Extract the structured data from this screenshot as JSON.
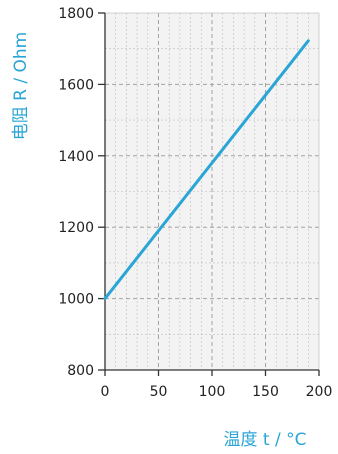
{
  "chart_data": {
    "type": "line",
    "xlabel": "温度 t / °C",
    "ylabel": "电阻 R / Ohm",
    "xlim": [
      0,
      200
    ],
    "ylim": [
      800,
      1800
    ],
    "x_ticks": [
      "0",
      "50",
      "100",
      "150",
      "200"
    ],
    "y_ticks": [
      "800",
      "1000",
      "1200",
      "1400",
      "1600",
      "1800"
    ],
    "grid": true,
    "series": [
      {
        "x": [
          0,
          190
        ],
        "y": [
          1000,
          1722
        ],
        "color": "#2aa5d6"
      }
    ]
  },
  "colors": {
    "line": "#2aa5d6",
    "label": "#2aa5d6",
    "axis": "#333333",
    "grid": "#9a9a9a",
    "plot_bg": "#f4f3f3",
    "tick_text": "#222222"
  }
}
